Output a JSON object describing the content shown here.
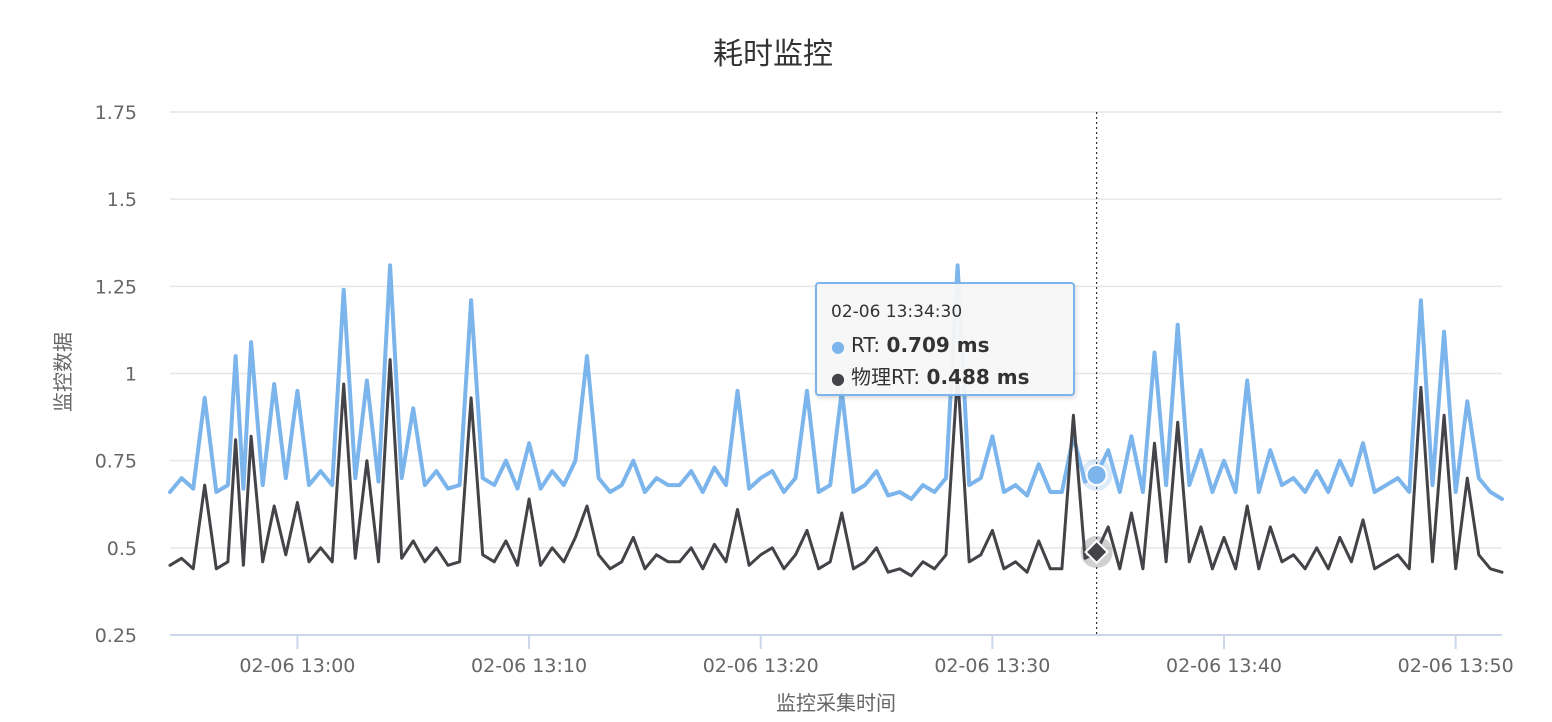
{
  "chart_data": {
    "type": "line",
    "title": "耗时监控",
    "xlabel": "监控采集时间",
    "ylabel": "监控数据",
    "ylim": [
      0.25,
      1.75
    ],
    "yticks": [
      "0.25",
      "0.5",
      "0.75",
      "1",
      "1.25",
      "1.5",
      "1.75"
    ],
    "xticks": [
      "02-06 13:00",
      "02-06 13:10",
      "02-06 13:20",
      "02-06 13:30",
      "02-06 13:40",
      "02-06 13:50"
    ],
    "x_range": [
      "02-06 12:54:30",
      "02-06 13:52:00"
    ],
    "legend": "none",
    "grid": true,
    "series": [
      {
        "name": "RT",
        "color": "#7cb5ec",
        "unit": "ms",
        "points": [
          [
            "12:54:30",
            0.66
          ],
          [
            "12:55:00",
            0.7
          ],
          [
            "12:55:30",
            0.67
          ],
          [
            "12:56:00",
            0.93
          ],
          [
            "12:56:30",
            0.66
          ],
          [
            "12:57:00",
            0.68
          ],
          [
            "12:57:20",
            1.05
          ],
          [
            "12:57:40",
            0.67
          ],
          [
            "12:58:00",
            1.09
          ],
          [
            "12:58:30",
            0.68
          ],
          [
            "12:59:00",
            0.97
          ],
          [
            "12:59:30",
            0.7
          ],
          [
            "13:00:00",
            0.95
          ],
          [
            "13:00:30",
            0.68
          ],
          [
            "13:01:00",
            0.72
          ],
          [
            "13:01:30",
            0.68
          ],
          [
            "13:02:00",
            1.24
          ],
          [
            "13:02:30",
            0.7
          ],
          [
            "13:03:00",
            0.98
          ],
          [
            "13:03:30",
            0.69
          ],
          [
            "13:04:00",
            1.31
          ],
          [
            "13:04:30",
            0.7
          ],
          [
            "13:05:00",
            0.9
          ],
          [
            "13:05:30",
            0.68
          ],
          [
            "13:06:00",
            0.72
          ],
          [
            "13:06:30",
            0.67
          ],
          [
            "13:07:00",
            0.68
          ],
          [
            "13:07:30",
            1.21
          ],
          [
            "13:08:00",
            0.7
          ],
          [
            "13:08:30",
            0.68
          ],
          [
            "13:09:00",
            0.75
          ],
          [
            "13:09:30",
            0.67
          ],
          [
            "13:10:00",
            0.8
          ],
          [
            "13:10:30",
            0.67
          ],
          [
            "13:11:00",
            0.72
          ],
          [
            "13:11:30",
            0.68
          ],
          [
            "13:12:00",
            0.75
          ],
          [
            "13:12:30",
            1.05
          ],
          [
            "13:13:00",
            0.7
          ],
          [
            "13:13:30",
            0.66
          ],
          [
            "13:14:00",
            0.68
          ],
          [
            "13:14:30",
            0.75
          ],
          [
            "13:15:00",
            0.66
          ],
          [
            "13:15:30",
            0.7
          ],
          [
            "13:16:00",
            0.68
          ],
          [
            "13:16:30",
            0.68
          ],
          [
            "13:17:00",
            0.72
          ],
          [
            "13:17:30",
            0.66
          ],
          [
            "13:18:00",
            0.73
          ],
          [
            "13:18:30",
            0.68
          ],
          [
            "13:19:00",
            0.95
          ],
          [
            "13:19:30",
            0.67
          ],
          [
            "13:20:00",
            0.7
          ],
          [
            "13:20:30",
            0.72
          ],
          [
            "13:21:00",
            0.66
          ],
          [
            "13:21:30",
            0.7
          ],
          [
            "13:22:00",
            0.95
          ],
          [
            "13:22:30",
            0.66
          ],
          [
            "13:23:00",
            0.68
          ],
          [
            "13:23:30",
            0.95
          ],
          [
            "13:24:00",
            0.66
          ],
          [
            "13:24:30",
            0.68
          ],
          [
            "13:25:00",
            0.72
          ],
          [
            "13:25:30",
            0.65
          ],
          [
            "13:26:00",
            0.66
          ],
          [
            "13:26:30",
            0.64
          ],
          [
            "13:27:00",
            0.68
          ],
          [
            "13:27:30",
            0.66
          ],
          [
            "13:28:00",
            0.7
          ],
          [
            "13:28:30",
            1.31
          ],
          [
            "13:29:00",
            0.68
          ],
          [
            "13:29:30",
            0.7
          ],
          [
            "13:30:00",
            0.82
          ],
          [
            "13:30:30",
            0.66
          ],
          [
            "13:31:00",
            0.68
          ],
          [
            "13:31:30",
            0.65
          ],
          [
            "13:32:00",
            0.74
          ],
          [
            "13:32:30",
            0.66
          ],
          [
            "13:33:00",
            0.66
          ],
          [
            "13:33:30",
            0.82
          ],
          [
            "13:34:00",
            0.69
          ],
          [
            "13:34:30",
            0.71
          ],
          [
            "13:35:00",
            0.78
          ],
          [
            "13:35:30",
            0.66
          ],
          [
            "13:36:00",
            0.82
          ],
          [
            "13:36:30",
            0.66
          ],
          [
            "13:37:00",
            1.06
          ],
          [
            "13:37:30",
            0.68
          ],
          [
            "13:38:00",
            1.14
          ],
          [
            "13:38:30",
            0.68
          ],
          [
            "13:39:00",
            0.78
          ],
          [
            "13:39:30",
            0.66
          ],
          [
            "13:40:00",
            0.75
          ],
          [
            "13:40:30",
            0.66
          ],
          [
            "13:41:00",
            0.98
          ],
          [
            "13:41:30",
            0.66
          ],
          [
            "13:42:00",
            0.78
          ],
          [
            "13:42:30",
            0.68
          ],
          [
            "13:43:00",
            0.7
          ],
          [
            "13:43:30",
            0.66
          ],
          [
            "13:44:00",
            0.72
          ],
          [
            "13:44:30",
            0.66
          ],
          [
            "13:45:00",
            0.75
          ],
          [
            "13:45:30",
            0.68
          ],
          [
            "13:46:00",
            0.8
          ],
          [
            "13:46:30",
            0.66
          ],
          [
            "13:47:00",
            0.68
          ],
          [
            "13:47:30",
            0.7
          ],
          [
            "13:48:00",
            0.66
          ],
          [
            "13:48:30",
            1.21
          ],
          [
            "13:49:00",
            0.68
          ],
          [
            "13:49:30",
            1.12
          ],
          [
            "13:50:00",
            0.66
          ],
          [
            "13:50:30",
            0.92
          ],
          [
            "13:51:00",
            0.7
          ],
          [
            "13:51:30",
            0.66
          ],
          [
            "13:52:00",
            0.64
          ]
        ]
      },
      {
        "name": "物理RT",
        "color": "#434348",
        "unit": "ms",
        "points": [
          [
            "12:54:30",
            0.45
          ],
          [
            "12:55:00",
            0.47
          ],
          [
            "12:55:30",
            0.44
          ],
          [
            "12:56:00",
            0.68
          ],
          [
            "12:56:30",
            0.44
          ],
          [
            "12:57:00",
            0.46
          ],
          [
            "12:57:20",
            0.81
          ],
          [
            "12:57:40",
            0.45
          ],
          [
            "12:58:00",
            0.82
          ],
          [
            "12:58:30",
            0.46
          ],
          [
            "12:59:00",
            0.62
          ],
          [
            "12:59:30",
            0.48
          ],
          [
            "13:00:00",
            0.63
          ],
          [
            "13:00:30",
            0.46
          ],
          [
            "13:01:00",
            0.5
          ],
          [
            "13:01:30",
            0.46
          ],
          [
            "13:02:00",
            0.97
          ],
          [
            "13:02:30",
            0.47
          ],
          [
            "13:03:00",
            0.75
          ],
          [
            "13:03:30",
            0.46
          ],
          [
            "13:04:00",
            1.04
          ],
          [
            "13:04:30",
            0.47
          ],
          [
            "13:05:00",
            0.52
          ],
          [
            "13:05:30",
            0.46
          ],
          [
            "13:06:00",
            0.5
          ],
          [
            "13:06:30",
            0.45
          ],
          [
            "13:07:00",
            0.46
          ],
          [
            "13:07:30",
            0.93
          ],
          [
            "13:08:00",
            0.48
          ],
          [
            "13:08:30",
            0.46
          ],
          [
            "13:09:00",
            0.52
          ],
          [
            "13:09:30",
            0.45
          ],
          [
            "13:10:00",
            0.64
          ],
          [
            "13:10:30",
            0.45
          ],
          [
            "13:11:00",
            0.5
          ],
          [
            "13:11:30",
            0.46
          ],
          [
            "13:12:00",
            0.53
          ],
          [
            "13:12:30",
            0.62
          ],
          [
            "13:13:00",
            0.48
          ],
          [
            "13:13:30",
            0.44
          ],
          [
            "13:14:00",
            0.46
          ],
          [
            "13:14:30",
            0.53
          ],
          [
            "13:15:00",
            0.44
          ],
          [
            "13:15:30",
            0.48
          ],
          [
            "13:16:00",
            0.46
          ],
          [
            "13:16:30",
            0.46
          ],
          [
            "13:17:00",
            0.5
          ],
          [
            "13:17:30",
            0.44
          ],
          [
            "13:18:00",
            0.51
          ],
          [
            "13:18:30",
            0.46
          ],
          [
            "13:19:00",
            0.61
          ],
          [
            "13:19:30",
            0.45
          ],
          [
            "13:20:00",
            0.48
          ],
          [
            "13:20:30",
            0.5
          ],
          [
            "13:21:00",
            0.44
          ],
          [
            "13:21:30",
            0.48
          ],
          [
            "13:22:00",
            0.55
          ],
          [
            "13:22:30",
            0.44
          ],
          [
            "13:23:00",
            0.46
          ],
          [
            "13:23:30",
            0.6
          ],
          [
            "13:24:00",
            0.44
          ],
          [
            "13:24:30",
            0.46
          ],
          [
            "13:25:00",
            0.5
          ],
          [
            "13:25:30",
            0.43
          ],
          [
            "13:26:00",
            0.44
          ],
          [
            "13:26:30",
            0.42
          ],
          [
            "13:27:00",
            0.46
          ],
          [
            "13:27:30",
            0.44
          ],
          [
            "13:28:00",
            0.48
          ],
          [
            "13:28:30",
            1.0
          ],
          [
            "13:29:00",
            0.46
          ],
          [
            "13:29:30",
            0.48
          ],
          [
            "13:30:00",
            0.55
          ],
          [
            "13:30:30",
            0.44
          ],
          [
            "13:31:00",
            0.46
          ],
          [
            "13:31:30",
            0.43
          ],
          [
            "13:32:00",
            0.52
          ],
          [
            "13:32:30",
            0.44
          ],
          [
            "13:33:00",
            0.44
          ],
          [
            "13:33:30",
            0.88
          ],
          [
            "13:34:00",
            0.47
          ],
          [
            "13:34:30",
            0.488
          ],
          [
            "13:35:00",
            0.56
          ],
          [
            "13:35:30",
            0.44
          ],
          [
            "13:36:00",
            0.6
          ],
          [
            "13:36:30",
            0.44
          ],
          [
            "13:37:00",
            0.8
          ],
          [
            "13:37:30",
            0.46
          ],
          [
            "13:38:00",
            0.86
          ],
          [
            "13:38:30",
            0.46
          ],
          [
            "13:39:00",
            0.56
          ],
          [
            "13:39:30",
            0.44
          ],
          [
            "13:40:00",
            0.53
          ],
          [
            "13:40:30",
            0.44
          ],
          [
            "13:41:00",
            0.62
          ],
          [
            "13:41:30",
            0.44
          ],
          [
            "13:42:00",
            0.56
          ],
          [
            "13:42:30",
            0.46
          ],
          [
            "13:43:00",
            0.48
          ],
          [
            "13:43:30",
            0.44
          ],
          [
            "13:44:00",
            0.5
          ],
          [
            "13:44:30",
            0.44
          ],
          [
            "13:45:00",
            0.53
          ],
          [
            "13:45:30",
            0.46
          ],
          [
            "13:46:00",
            0.58
          ],
          [
            "13:46:30",
            0.44
          ],
          [
            "13:47:00",
            0.46
          ],
          [
            "13:47:30",
            0.48
          ],
          [
            "13:48:00",
            0.44
          ],
          [
            "13:48:30",
            0.96
          ],
          [
            "13:49:00",
            0.46
          ],
          [
            "13:49:30",
            0.88
          ],
          [
            "13:50:00",
            0.44
          ],
          [
            "13:50:30",
            0.7
          ],
          [
            "13:51:00",
            0.48
          ],
          [
            "13:51:30",
            0.44
          ],
          [
            "13:52:00",
            0.43
          ]
        ]
      }
    ],
    "tooltip": {
      "time": "02-06 13:34:30",
      "rows": [
        {
          "series": "RT",
          "label": "RT: ",
          "value": "0.709 ms",
          "color": "#7cb5ec"
        },
        {
          "series": "物理RT",
          "label": "物理RT: ",
          "value": "0.488 ms",
          "color": "#434348"
        }
      ]
    }
  }
}
